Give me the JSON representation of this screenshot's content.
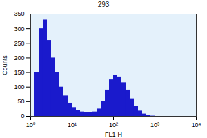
{
  "chart_data": {
    "type": "histogram",
    "title": "293",
    "x_label": "FL1-H",
    "y_label": "Counts",
    "bins": [
      1,
      1.259,
      1.585,
      1.995,
      2.512,
      3.162,
      3.981,
      5.012,
      6.31,
      7.943,
      10,
      12.59,
      15.85,
      19.95,
      25.12,
      31.62,
      39.81,
      50.12,
      63.1,
      79.43,
      100,
      125.9,
      158.5,
      199.5,
      251.2,
      316.2,
      398.1,
      501.2,
      631,
      794.3,
      1000,
      1259,
      1585,
      1995,
      2512,
      3162,
      3981,
      5012,
      6310,
      7943,
      10000
    ],
    "values": [
      0,
      150,
      300,
      330,
      260,
      200,
      150,
      100,
      70,
      45,
      30,
      20,
      15,
      12,
      12,
      15,
      25,
      50,
      90,
      125,
      140,
      135,
      115,
      90,
      60,
      35,
      18,
      8,
      3,
      1,
      0,
      0,
      0,
      0,
      0,
      0,
      0,
      0,
      0,
      0
    ],
    "color": "#1a1acc",
    "log": "x",
    "grid": false,
    "xlim": [
      1,
      10000
    ],
    "xticks": [
      {
        "value": 1,
        "label": "10⁰"
      },
      {
        "value": 10,
        "label": "10¹"
      },
      {
        "value": 100,
        "label": "10²"
      },
      {
        "value": 1000,
        "label": "10³"
      },
      {
        "value": 10000,
        "label": "10⁴"
      }
    ],
    "ylim": [
      0,
      350
    ],
    "yticks": [
      0,
      50,
      100,
      150,
      200,
      250,
      300,
      350
    ]
  }
}
